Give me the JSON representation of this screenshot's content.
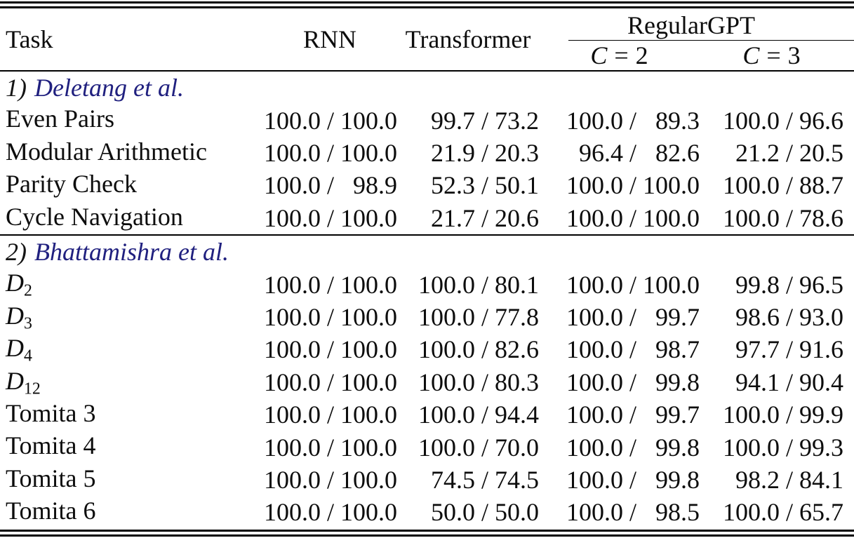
{
  "colors": {
    "text": "#0d0d0d",
    "section_name": "#20207f",
    "rule": "#000000"
  },
  "header": {
    "task": "Task",
    "rnn": "RNN",
    "transformer": "Transformer",
    "group": "RegularGPT",
    "sub_columns": [
      {
        "var": "C",
        "rel": "=",
        "val": "2"
      },
      {
        "var": "C",
        "rel": "=",
        "val": "3"
      }
    ]
  },
  "sections": [
    {
      "index": "1)",
      "name": "Deletang et al.",
      "rows": [
        {
          "task": "Even Pairs",
          "sub": "",
          "math": false,
          "rnn": {
            "x": "100.0",
            "y": "100.0"
          },
          "transformer": {
            "x": "99.7",
            "y": "73.2"
          },
          "c2": {
            "x": "100.0",
            "y": "89.3"
          },
          "c3": {
            "x": "100.0",
            "y": "96.6"
          }
        },
        {
          "task": "Modular Arithmetic",
          "sub": "",
          "math": false,
          "rnn": {
            "x": "100.0",
            "y": "100.0"
          },
          "transformer": {
            "x": "21.9",
            "y": "20.3"
          },
          "c2": {
            "x": "96.4",
            "y": "82.6"
          },
          "c3": {
            "x": "21.2",
            "y": "20.5"
          }
        },
        {
          "task": "Parity Check",
          "sub": "",
          "math": false,
          "rnn": {
            "x": "100.0",
            "y": "98.9"
          },
          "transformer": {
            "x": "52.3",
            "y": "50.1"
          },
          "c2": {
            "x": "100.0",
            "y": "100.0"
          },
          "c3": {
            "x": "100.0",
            "y": "88.7"
          }
        },
        {
          "task": "Cycle Navigation",
          "sub": "",
          "math": false,
          "rnn": {
            "x": "100.0",
            "y": "100.0"
          },
          "transformer": {
            "x": "21.7",
            "y": "20.6"
          },
          "c2": {
            "x": "100.0",
            "y": "100.0"
          },
          "c3": {
            "x": "100.0",
            "y": "78.6"
          }
        }
      ]
    },
    {
      "index": "2)",
      "name": "Bhattamishra et al.",
      "rows": [
        {
          "task": "D",
          "sub": "2",
          "math": true,
          "rnn": {
            "x": "100.0",
            "y": "100.0"
          },
          "transformer": {
            "x": "100.0",
            "y": "80.1"
          },
          "c2": {
            "x": "100.0",
            "y": "100.0"
          },
          "c3": {
            "x": "99.8",
            "y": "96.5"
          }
        },
        {
          "task": "D",
          "sub": "3",
          "math": true,
          "rnn": {
            "x": "100.0",
            "y": "100.0"
          },
          "transformer": {
            "x": "100.0",
            "y": "77.8"
          },
          "c2": {
            "x": "100.0",
            "y": "99.7"
          },
          "c3": {
            "x": "98.6",
            "y": "93.0"
          }
        },
        {
          "task": "D",
          "sub": "4",
          "math": true,
          "rnn": {
            "x": "100.0",
            "y": "100.0"
          },
          "transformer": {
            "x": "100.0",
            "y": "82.6"
          },
          "c2": {
            "x": "100.0",
            "y": "98.7"
          },
          "c3": {
            "x": "97.7",
            "y": "91.6"
          }
        },
        {
          "task": "D",
          "sub": "12",
          "math": true,
          "rnn": {
            "x": "100.0",
            "y": "100.0"
          },
          "transformer": {
            "x": "100.0",
            "y": "80.3"
          },
          "c2": {
            "x": "100.0",
            "y": "99.8"
          },
          "c3": {
            "x": "94.1",
            "y": "90.4"
          }
        },
        {
          "task": "Tomita 3",
          "sub": "",
          "math": false,
          "rnn": {
            "x": "100.0",
            "y": "100.0"
          },
          "transformer": {
            "x": "100.0",
            "y": "94.4"
          },
          "c2": {
            "x": "100.0",
            "y": "99.7"
          },
          "c3": {
            "x": "100.0",
            "y": "99.9"
          }
        },
        {
          "task": "Tomita 4",
          "sub": "",
          "math": false,
          "rnn": {
            "x": "100.0",
            "y": "100.0"
          },
          "transformer": {
            "x": "100.0",
            "y": "70.0"
          },
          "c2": {
            "x": "100.0",
            "y": "99.8"
          },
          "c3": {
            "x": "100.0",
            "y": "99.3"
          }
        },
        {
          "task": "Tomita 5",
          "sub": "",
          "math": false,
          "rnn": {
            "x": "100.0",
            "y": "100.0"
          },
          "transformer": {
            "x": "74.5",
            "y": "74.5"
          },
          "c2": {
            "x": "100.0",
            "y": "99.8"
          },
          "c3": {
            "x": "98.2",
            "y": "84.1"
          }
        },
        {
          "task": "Tomita 6",
          "sub": "",
          "math": false,
          "rnn": {
            "x": "100.0",
            "y": "100.0"
          },
          "transformer": {
            "x": "50.0",
            "y": "50.0"
          },
          "c2": {
            "x": "100.0",
            "y": "98.5"
          },
          "c3": {
            "x": "100.0",
            "y": "65.7"
          }
        }
      ]
    }
  ]
}
